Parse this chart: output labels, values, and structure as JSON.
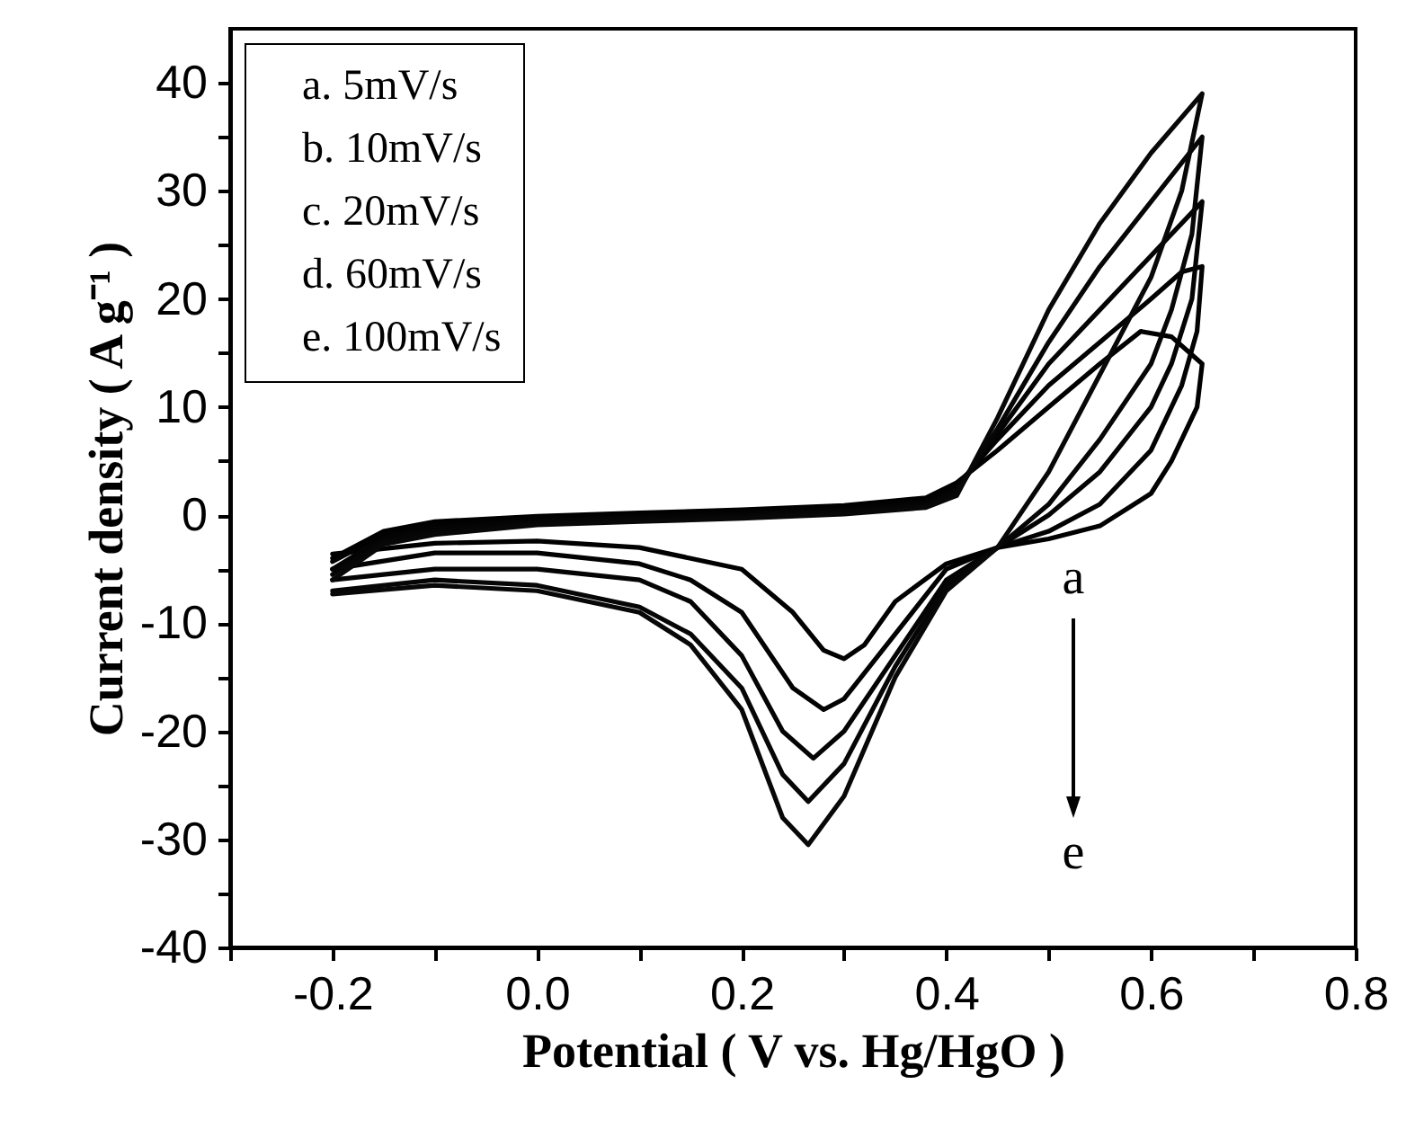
{
  "chart_data": {
    "type": "line",
    "xlabel": "Potential ( V vs. Hg/HgO )",
    "ylabel": "Current density ( A g⁻¹ )",
    "xlim": [
      -0.3,
      0.8
    ],
    "ylim": [
      -40,
      45
    ],
    "xticks": [
      {
        "value": -0.3,
        "label": null
      },
      -0.2,
      {
        "value": -0.1,
        "label": null
      },
      {
        "value": 0,
        "label": "0.0"
      },
      {
        "value": 0.1,
        "label": null
      },
      0.2,
      {
        "value": 0.3,
        "label": null
      },
      0.4,
      {
        "value": 0.5,
        "label": null
      },
      0.6,
      {
        "value": 0.7,
        "label": null
      },
      0.8
    ],
    "yticks": [
      -40,
      {
        "value": -35,
        "label": null
      },
      -30,
      {
        "value": -25,
        "label": null
      },
      -20,
      {
        "value": -15,
        "label": null
      },
      -10,
      {
        "value": -5,
        "label": null
      },
      0,
      {
        "value": 5,
        "label": null
      },
      10,
      {
        "value": 15,
        "label": null
      },
      20,
      {
        "value": 25,
        "label": null
      },
      30,
      {
        "value": 35,
        "label": null
      },
      40
    ],
    "legend": "top left",
    "annotations": [
      "a",
      "e"
    ],
    "series": [
      {
        "name": "a. 5mV/s",
        "color": "#000000",
        "x": [
          -0.2,
          -0.15,
          -0.1,
          0,
          0.1,
          0.2,
          0.3,
          0.38,
          0.41,
          0.45,
          0.5,
          0.55,
          0.59,
          0.62,
          0.65,
          0.645,
          0.62,
          0.6,
          0.55,
          0.5,
          0.45,
          0.4,
          0.35,
          0.32,
          0.3,
          0.28,
          0.25,
          0.2,
          0.1,
          0,
          -0.1,
          -0.2
        ],
        "values": [
          -4,
          -1.5,
          -0.6,
          -0.1,
          0.2,
          0.5,
          0.9,
          1.6,
          3,
          6,
          10,
          14,
          17,
          16.5,
          14,
          10,
          5,
          2,
          -1,
          -2.2,
          -3,
          -4.5,
          -8,
          -12,
          -13.3,
          -12.5,
          -9,
          -5,
          -3,
          -2.4,
          -2.6,
          -3.6
        ]
      },
      {
        "name": "b. 10mV/s",
        "color": "#020202",
        "x": [
          -0.2,
          -0.15,
          -0.1,
          0,
          0.1,
          0.2,
          0.3,
          0.38,
          0.41,
          0.45,
          0.5,
          0.55,
          0.6,
          0.63,
          0.65,
          0.645,
          0.63,
          0.6,
          0.55,
          0.5,
          0.45,
          0.4,
          0.35,
          0.3,
          0.28,
          0.25,
          0.2,
          0.15,
          0.1,
          0,
          -0.1,
          -0.2
        ],
        "values": [
          -4.3,
          -1.8,
          -0.9,
          -0.3,
          0,
          0.3,
          0.7,
          1.3,
          2.7,
          7,
          12,
          16,
          20,
          22.5,
          23,
          17,
          12,
          6,
          1,
          -1.5,
          -3,
          -5,
          -11,
          -17,
          -18,
          -16,
          -9,
          -6,
          -4.5,
          -3.5,
          -3.5,
          -5
        ]
      },
      {
        "name": "c. 20mV/s",
        "color": "#040404",
        "x": [
          -0.2,
          -0.15,
          -0.1,
          0,
          0.1,
          0.2,
          0.3,
          0.38,
          0.41,
          0.45,
          0.5,
          0.55,
          0.6,
          0.65,
          0.64,
          0.62,
          0.6,
          0.55,
          0.5,
          0.45,
          0.4,
          0.35,
          0.3,
          0.27,
          0.24,
          0.2,
          0.15,
          0.1,
          0,
          -0.1,
          -0.2
        ],
        "values": [
          -5,
          -2.1,
          -1.2,
          -0.5,
          -0.2,
          0.1,
          0.5,
          1.1,
          2.4,
          7.5,
          14,
          19,
          24,
          29,
          20,
          14,
          10,
          4,
          0,
          -3,
          -6,
          -13,
          -20,
          -22.5,
          -20,
          -13,
          -8,
          -6,
          -5,
          -5,
          -6
        ]
      },
      {
        "name": "d. 60mV/s",
        "color": "#060606",
        "x": [
          -0.2,
          -0.15,
          -0.1,
          0,
          0.1,
          0.2,
          0.3,
          0.38,
          0.41,
          0.45,
          0.5,
          0.55,
          0.6,
          0.65,
          0.64,
          0.62,
          0.6,
          0.55,
          0.5,
          0.45,
          0.4,
          0.35,
          0.3,
          0.265,
          0.24,
          0.2,
          0.15,
          0.1,
          0,
          -0.1,
          -0.2
        ],
        "values": [
          -5.5,
          -2.4,
          -1.5,
          -0.7,
          -0.4,
          -0.1,
          0.3,
          0.9,
          2.1,
          8,
          16,
          23,
          29,
          35,
          26,
          19,
          14,
          7,
          1,
          -3,
          -6.5,
          -14,
          -23,
          -26.5,
          -24,
          -16,
          -11,
          -8.5,
          -6.5,
          -6,
          -7
        ]
      },
      {
        "name": "e. 100mV/s",
        "color": "#080808",
        "x": [
          -0.2,
          -0.15,
          -0.1,
          0,
          0.1,
          0.2,
          0.3,
          0.38,
          0.41,
          0.45,
          0.5,
          0.55,
          0.6,
          0.65,
          0.63,
          0.6,
          0.55,
          0.5,
          0.45,
          0.4,
          0.35,
          0.3,
          0.265,
          0.24,
          0.2,
          0.15,
          0.1,
          0,
          -0.1,
          -0.2
        ],
        "values": [
          -6,
          -2.7,
          -1.8,
          -0.9,
          -0.6,
          -0.3,
          0.1,
          0.7,
          1.8,
          9,
          19,
          27,
          33.5,
          39,
          30,
          22,
          13,
          4,
          -3,
          -7,
          -15,
          -26,
          -30.5,
          -28,
          -18,
          -12,
          -9,
          -7,
          -6.5,
          -7.3
        ]
      }
    ]
  }
}
